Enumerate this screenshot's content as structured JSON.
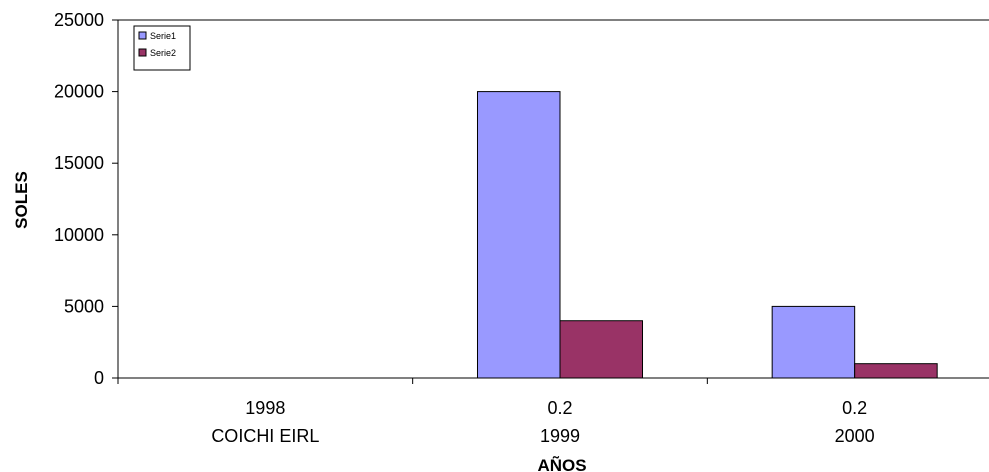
{
  "chart_data": {
    "type": "bar",
    "categories": [
      [
        "1998",
        "COICHI EIRL"
      ],
      [
        "0.2",
        "1999"
      ],
      [
        "0.2",
        "2000"
      ]
    ],
    "series": [
      {
        "name": "Serie1",
        "color": "#9999FF",
        "values": [
          0,
          20000,
          5000
        ]
      },
      {
        "name": "Serie2",
        "color": "#993366",
        "values": [
          0,
          4000,
          1000
        ]
      }
    ],
    "ylabel": "SOLES",
    "xlabel": "AÑOS",
    "ylim": [
      0,
      25000
    ],
    "yticks": [
      0,
      5000,
      10000,
      15000,
      20000,
      25000
    ],
    "grid": false,
    "legend_position": "top-left"
  }
}
